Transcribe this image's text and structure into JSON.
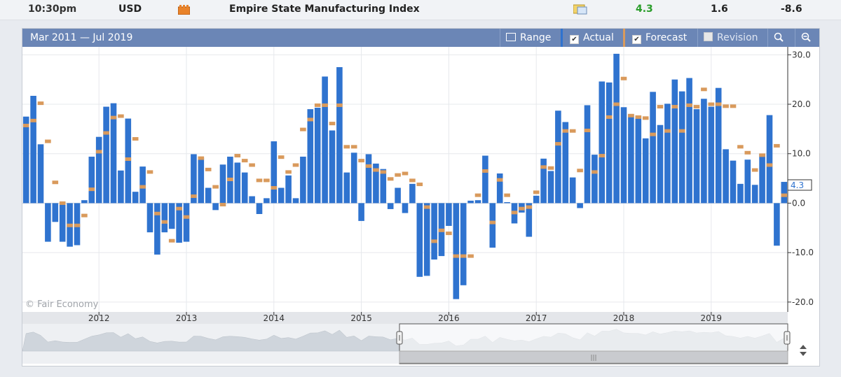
{
  "event_row": {
    "time": "10:30pm",
    "currency": "USD",
    "event": "Empire State Manufacturing Index",
    "actual": "4.3",
    "forecast": "1.6",
    "previous": "-8.6",
    "actual_color": "#2a9d2a",
    "impact_icon": "orange-impact-icon",
    "detail_icon": "folder-detail-icon"
  },
  "toolbar": {
    "range_text": "Mar 2011 — Jul 2019",
    "range_label": "Range",
    "actual_label": "Actual",
    "forecast_label": "Forecast",
    "revision_label": "Revision",
    "zoom_in_icon": "zoom-in-icon",
    "zoom_out_icon": "zoom-out-icon"
  },
  "watermark": "© Fair Economy",
  "chart_data": {
    "type": "bar",
    "y_axis": {
      "min": -22,
      "max": 31.6,
      "ticks": [
        "30.0",
        "20.0",
        "10.0",
        "0.0",
        "-10.0",
        "-20.0"
      ],
      "tick_values": [
        30,
        20,
        10,
        0,
        -10,
        -20
      ]
    },
    "x_ticks": [
      {
        "label": "2012",
        "month_index": 10
      },
      {
        "label": "2013",
        "month_index": 22
      },
      {
        "label": "2014",
        "month_index": 34
      },
      {
        "label": "2015",
        "month_index": 46
      },
      {
        "label": "2016",
        "month_index": 58
      },
      {
        "label": "2017",
        "month_index": 70
      },
      {
        "label": "2018",
        "month_index": 82
      },
      {
        "label": "2019",
        "month_index": 94
      }
    ],
    "current_value_label": "4.3",
    "grid": true,
    "series": [
      {
        "name": "Actual",
        "color": "#2f73cf",
        "values": [
          17.5,
          21.7,
          11.9,
          -7.8,
          -3.8,
          -7.8,
          -8.8,
          -8.5,
          0.6,
          9.4,
          13.4,
          19.5,
          20.2,
          6.6,
          17.1,
          2.3,
          7.4,
          -5.9,
          -10.4,
          -5.9,
          -5.2,
          -8.0,
          -7.8,
          9.9,
          9.2,
          3.1,
          -1.4,
          7.8,
          9.4,
          8.2,
          6.2,
          1.4,
          -2.2,
          1.0,
          12.5,
          3.1,
          5.6,
          1.0,
          9.4,
          19.0,
          19.3,
          25.6,
          14.7,
          27.5,
          6.2,
          10.2,
          -3.6,
          9.9,
          8.0,
          6.9,
          -1.2,
          3.1,
          -2.0,
          3.9,
          -14.9,
          -14.7,
          -11.4,
          -10.7,
          -4.6,
          -19.4,
          -16.6,
          0.5,
          0.6,
          9.6,
          -9.0,
          6.0,
          0.2,
          -4.1,
          -1.9,
          -6.8,
          1.5,
          9.0,
          6.5,
          18.7,
          16.4,
          5.2,
          -1.0,
          19.8,
          9.8,
          24.6,
          24.4,
          30.2,
          19.4,
          18.0,
          17.7,
          13.1,
          22.5,
          15.8,
          20.1,
          25.0,
          22.6,
          25.3,
          19.0,
          21.1,
          19.5,
          23.3,
          10.9,
          8.6,
          3.9,
          8.8,
          3.7,
          10.0,
          17.8,
          -8.6,
          4.3
        ]
      },
      {
        "name": "Forecast",
        "color": "#d99a5c",
        "values": [
          15.7,
          16.7,
          20.2,
          12.5,
          4.2,
          0.0,
          -4.5,
          -4.5,
          -2.5,
          2.8,
          10.4,
          14.2,
          17.3,
          17.6,
          8.9,
          13.0,
          3.3,
          6.3,
          -2.1,
          -3.8,
          -7.6,
          -1.1,
          -2.8,
          1.4,
          9.1,
          6.8,
          3.3,
          -0.3,
          4.8,
          9.6,
          8.6,
          7.7,
          4.6,
          4.6,
          3.1,
          9.3,
          6.3,
          7.7,
          14.9,
          16.9,
          19.8,
          19.8,
          16.1,
          19.8,
          11.4,
          11.4,
          8.6,
          7.5,
          6.7,
          6.3,
          4.9,
          5.7,
          6.0,
          4.6,
          3.8,
          -0.8,
          -7.7,
          -5.5,
          -6.1,
          -10.7,
          -10.7,
          -10.7,
          1.6,
          6.5,
          -3.9,
          4.7,
          1.6,
          -1.9,
          -1.1,
          -0.8,
          2.2,
          7.3,
          7.1,
          12.0,
          14.6,
          14.6,
          6.6,
          14.7,
          6.3,
          9.6,
          17.4,
          20.0,
          25.2,
          17.7,
          17.4,
          17.2,
          13.9,
          19.5,
          14.6,
          19.5,
          14.6,
          19.8,
          19.5,
          23.0,
          20.0,
          20.0,
          19.6,
          19.6,
          11.4,
          10.2,
          6.7,
          9.7,
          7.7,
          11.6,
          1.6
        ]
      }
    ]
  }
}
